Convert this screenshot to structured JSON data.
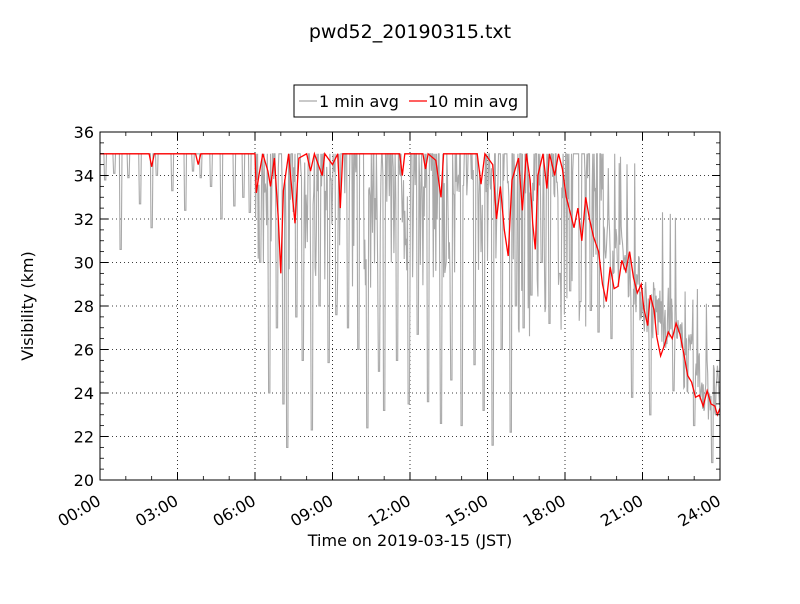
{
  "chart_data": {
    "type": "line",
    "title": "pwd52_20190315.txt",
    "xlabel": "Time on 2019-03-15 (JST)",
    "ylabel": "Visibility (km)",
    "xlim": [
      0,
      24
    ],
    "ylim": [
      20,
      36
    ],
    "x_unit": "hours",
    "xticks": [
      "00:00",
      "03:00",
      "06:00",
      "09:00",
      "12:00",
      "15:00",
      "18:00",
      "21:00",
      "24:00"
    ],
    "yticks": [
      "20",
      "22",
      "24",
      "26",
      "28",
      "30",
      "32",
      "34",
      "36"
    ],
    "grid": true,
    "legend_position": "top-center-outside",
    "series": [
      {
        "name": "1 min avg",
        "color": "#a9a9a9",
        "segments": [
          {
            "x0": 0.0,
            "x1": 6.0,
            "base": 35,
            "drop": [
              [
                0.2,
                33.8
              ],
              [
                0.55,
                34.1
              ],
              [
                0.8,
                30.6
              ],
              [
                1.1,
                33.9
              ],
              [
                1.55,
                32.7
              ],
              [
                2.0,
                31.6
              ],
              [
                2.2,
                34.0
              ],
              [
                2.8,
                33.3
              ],
              [
                3.3,
                32.4
              ],
              [
                3.6,
                34.2
              ],
              [
                3.9,
                33.9
              ],
              [
                4.3,
                33.5
              ],
              [
                4.7,
                32.0
              ],
              [
                5.2,
                32.6
              ],
              [
                5.55,
                33.0
              ],
              [
                5.8,
                32.3
              ]
            ]
          },
          {
            "x0": 6.0,
            "x1": 9.5,
            "level": [
              34.6,
              33.2
            ],
            "low": [
              [
                6.2,
                30
              ],
              [
                6.55,
                24
              ],
              [
                6.85,
                27
              ],
              [
                7.1,
                23.5
              ],
              [
                7.25,
                21.5
              ],
              [
                7.6,
                27.5
              ],
              [
                7.85,
                25.5
              ],
              [
                8.2,
                22.3
              ],
              [
                8.5,
                28.0
              ],
              [
                8.85,
                25.4
              ],
              [
                9.15,
                27.6
              ]
            ]
          },
          {
            "x0": 9.5,
            "x1": 16.0,
            "level": [
              34.4,
              32.8
            ],
            "low": [
              [
                9.6,
                27
              ],
              [
                10.0,
                26.0
              ],
              [
                10.35,
                22.4
              ],
              [
                10.8,
                25.0
              ],
              [
                11.0,
                23.2
              ],
              [
                11.5,
                25.5
              ],
              [
                11.95,
                23.5
              ],
              [
                12.3,
                26.7
              ],
              [
                12.7,
                23.6
              ],
              [
                13.2,
                22.6
              ],
              [
                13.6,
                24.6
              ],
              [
                14.0,
                22.5
              ],
              [
                14.5,
                25.3
              ],
              [
                14.85,
                23.2
              ],
              [
                15.2,
                21.6
              ],
              [
                15.55,
                26.0
              ],
              [
                15.9,
                22.2
              ]
            ]
          },
          {
            "x0": 16.0,
            "x1": 19.5,
            "level": [
              34.3,
              30.6
            ],
            "low": [
              [
                16.1,
                28.0
              ],
              [
                16.4,
                27.0
              ],
              [
                16.7,
                28.5
              ],
              [
                17.1,
                30.0
              ],
              [
                17.4,
                27.2
              ],
              [
                17.8,
                29.5
              ],
              [
                18.2,
                28.7
              ],
              [
                18.6,
                28.2
              ],
              [
                19.0,
                27.8
              ],
              [
                19.3,
                26.8
              ]
            ]
          },
          {
            "x0": 19.5,
            "x1": 24.0,
            "trend": [
              [
                19.5,
                30.5
              ],
              [
                20.5,
                29.4
              ],
              [
                21.2,
                27.4
              ],
              [
                22.0,
                27.0
              ],
              [
                22.6,
                25.2
              ],
              [
                23.3,
                24.0
              ],
              [
                24.0,
                23.2
              ]
            ],
            "noise": 1.4,
            "low": [
              [
                19.8,
                26.5
              ],
              [
                20.6,
                23.8
              ],
              [
                21.3,
                23.0
              ],
              [
                22.2,
                24.1
              ],
              [
                23.0,
                22.5
              ],
              [
                23.7,
                20.8
              ]
            ]
          }
        ]
      },
      {
        "name": "10 min avg",
        "color": "#ff0000",
        "points": [
          [
            0,
            35
          ],
          [
            1.9,
            35
          ],
          [
            2.0,
            34.4
          ],
          [
            2.1,
            35
          ],
          [
            3.7,
            35
          ],
          [
            3.8,
            34.5
          ],
          [
            3.9,
            35
          ],
          [
            6.0,
            35
          ],
          [
            6.05,
            33.2
          ],
          [
            6.15,
            34.0
          ],
          [
            6.3,
            35
          ],
          [
            6.5,
            34.2
          ],
          [
            6.6,
            33.5
          ],
          [
            6.75,
            34.8
          ],
          [
            6.9,
            32.0
          ],
          [
            7.0,
            29.5
          ],
          [
            7.1,
            33.3
          ],
          [
            7.3,
            35
          ],
          [
            7.45,
            33.0
          ],
          [
            7.55,
            31.8
          ],
          [
            7.7,
            34.8
          ],
          [
            8.0,
            35
          ],
          [
            8.15,
            34.2
          ],
          [
            8.3,
            35
          ],
          [
            8.6,
            34.0
          ],
          [
            8.7,
            35
          ],
          [
            9.0,
            34.5
          ],
          [
            9.2,
            35
          ],
          [
            9.3,
            32.5
          ],
          [
            9.4,
            35
          ],
          [
            11.6,
            35
          ],
          [
            11.7,
            34.0
          ],
          [
            11.8,
            35
          ],
          [
            12.5,
            35
          ],
          [
            12.6,
            34.3
          ],
          [
            12.7,
            35
          ],
          [
            13.0,
            34.7
          ],
          [
            13.2,
            33.0
          ],
          [
            13.3,
            35
          ],
          [
            14.6,
            35
          ],
          [
            14.75,
            33.6
          ],
          [
            14.9,
            35
          ],
          [
            15.2,
            34.5
          ],
          [
            15.35,
            32.0
          ],
          [
            15.5,
            33.5
          ],
          [
            15.65,
            31.5
          ],
          [
            15.8,
            30.3
          ],
          [
            15.95,
            33.8
          ],
          [
            16.2,
            34.8
          ],
          [
            16.35,
            32.4
          ],
          [
            16.5,
            35
          ],
          [
            16.65,
            33.8
          ],
          [
            16.75,
            31.8
          ],
          [
            16.85,
            30.6
          ],
          [
            16.95,
            34.0
          ],
          [
            17.15,
            35
          ],
          [
            17.3,
            33.4
          ],
          [
            17.4,
            35
          ],
          [
            17.6,
            34.0
          ],
          [
            17.75,
            35
          ],
          [
            17.9,
            34.3
          ],
          [
            18.05,
            33.0
          ],
          [
            18.2,
            32.3
          ],
          [
            18.35,
            31.6
          ],
          [
            18.5,
            32.5
          ],
          [
            18.65,
            31.0
          ],
          [
            18.8,
            33.0
          ],
          [
            18.95,
            32.0
          ],
          [
            19.1,
            31.2
          ],
          [
            19.3,
            30.5
          ],
          [
            19.45,
            29.0
          ],
          [
            19.6,
            28.2
          ],
          [
            19.75,
            29.8
          ],
          [
            19.9,
            28.8
          ],
          [
            20.05,
            28.9
          ],
          [
            20.2,
            30.1
          ],
          [
            20.35,
            29.6
          ],
          [
            20.5,
            30.5
          ],
          [
            20.65,
            29.3
          ],
          [
            20.8,
            28.6
          ],
          [
            20.95,
            29.0
          ],
          [
            21.05,
            27.9
          ],
          [
            21.2,
            27.1
          ],
          [
            21.3,
            28.5
          ],
          [
            21.45,
            27.8
          ],
          [
            21.55,
            26.6
          ],
          [
            21.7,
            25.7
          ],
          [
            21.85,
            26.2
          ],
          [
            22.0,
            26.8
          ],
          [
            22.15,
            26.5
          ],
          [
            22.3,
            27.2
          ],
          [
            22.45,
            26.7
          ],
          [
            22.6,
            25.8
          ],
          [
            22.75,
            24.8
          ],
          [
            22.9,
            24.5
          ],
          [
            23.05,
            23.8
          ],
          [
            23.2,
            23.9
          ],
          [
            23.35,
            23.4
          ],
          [
            23.5,
            24.1
          ],
          [
            23.65,
            23.5
          ],
          [
            23.8,
            23.4
          ],
          [
            23.9,
            23.0
          ],
          [
            24.0,
            23.3
          ]
        ]
      }
    ]
  }
}
